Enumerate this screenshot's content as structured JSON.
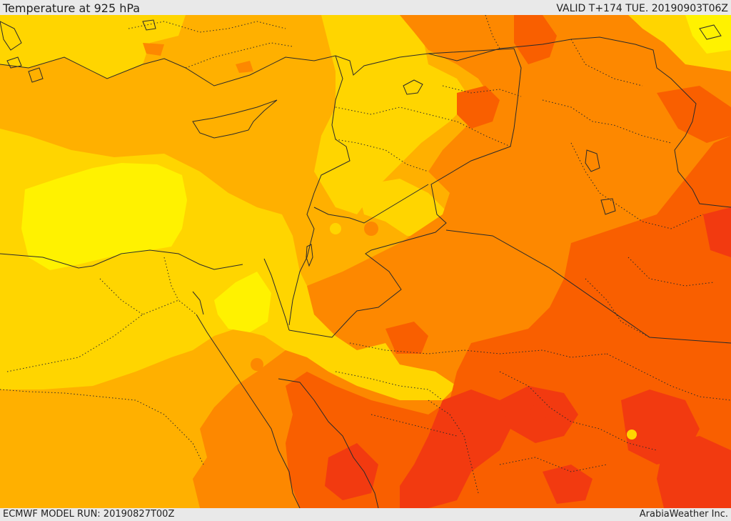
{
  "header": {
    "title": "Temperature at 925 hPa",
    "valid": "VALID T+174 TUE. 20190903T06Z"
  },
  "footer": {
    "model_run": "ECMWF MODEL RUN: 20190827T00Z",
    "credit": "ArabiaWeather Inc."
  },
  "map": {
    "colors": {
      "cool": "#fff200",
      "mild": "#ffd500",
      "warm": "#ffb000",
      "hot": "#fd8800",
      "very_hot": "#f95f00",
      "extreme": "#f23a10",
      "border": "#2a2a2a"
    }
  }
}
